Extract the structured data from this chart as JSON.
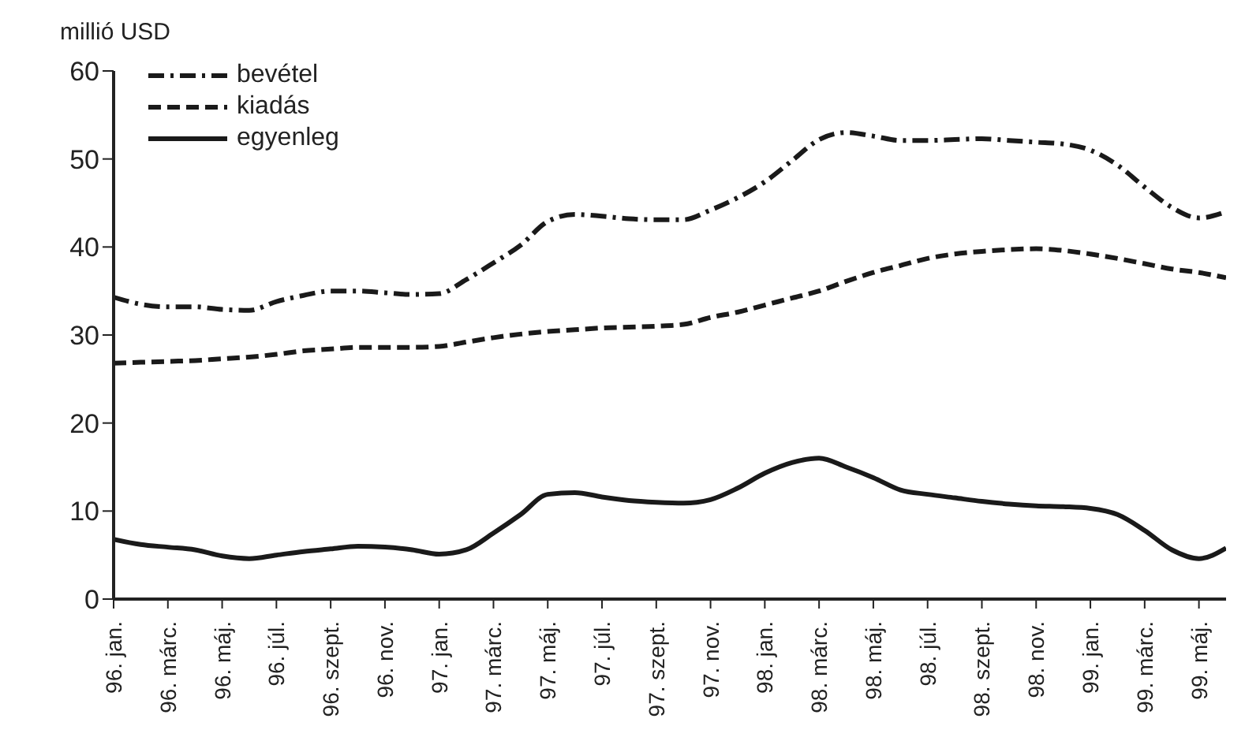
{
  "chart_data": {
    "type": "line",
    "ylabel": "millió USD",
    "categories": [
      "96. jan.",
      null,
      "96. márc.",
      null,
      "96. máj.",
      null,
      "96. júl.",
      null,
      "96. szept.",
      null,
      "96. nov.",
      null,
      "97. jan.",
      null,
      "97. márc.",
      null,
      "97. máj.",
      null,
      "97. júl.",
      null,
      "97. szept.",
      null,
      "97. nov.",
      null,
      "98. jan.",
      null,
      "98. márc.",
      null,
      "98. máj.",
      null,
      "98. júl.",
      null,
      "98. szept.",
      null,
      "98. nov.",
      null,
      "99. jan.",
      null,
      "99. márc.",
      null,
      "99. máj.",
      null
    ],
    "series": [
      {
        "name": "bevétel",
        "color": "#1a1a1a",
        "line_style": "dashdot",
        "values": [
          34.3,
          33.5,
          33.2,
          33.2,
          32.9,
          32.8,
          33.8,
          34.5,
          35.0,
          35.0,
          34.8,
          34.6,
          34.7,
          36.3,
          38.2,
          40.2,
          42.9,
          43.7,
          43.5,
          43.2,
          43.1,
          43.1,
          44.2,
          45.6,
          47.4,
          49.8,
          52.2,
          53.0,
          52.6,
          52.1,
          52.1,
          52.2,
          52.3,
          52.1,
          51.9,
          51.7,
          51.0,
          49.3,
          46.8,
          44.5,
          43.3,
          44.0
        ]
      },
      {
        "name": "kiadás",
        "color": "#1a1a1a",
        "line_style": "dashed",
        "values": [
          26.8,
          26.9,
          27.0,
          27.1,
          27.3,
          27.5,
          27.8,
          28.2,
          28.4,
          28.6,
          28.6,
          28.6,
          28.7,
          29.2,
          29.7,
          30.1,
          30.4,
          30.6,
          30.8,
          30.9,
          31.0,
          31.2,
          32.0,
          32.6,
          33.4,
          34.2,
          35.0,
          36.1,
          37.1,
          37.9,
          38.7,
          39.2,
          39.5,
          39.7,
          39.8,
          39.6,
          39.2,
          38.7,
          38.1,
          37.5,
          37.1,
          36.5
        ]
      },
      {
        "name": "egyenleg",
        "color": "#1a1a1a",
        "line_style": "solid",
        "values": [
          6.8,
          6.2,
          5.9,
          5.6,
          4.9,
          4.6,
          5.0,
          5.4,
          5.7,
          6.0,
          5.9,
          5.6,
          5.1,
          5.6,
          7.5,
          9.6,
          11.9,
          12.1,
          11.6,
          11.2,
          11.0,
          10.9,
          11.3,
          12.6,
          14.3,
          15.5,
          16.0,
          15.0,
          13.8,
          12.4,
          11.9,
          11.5,
          11.1,
          10.8,
          10.6,
          10.5,
          10.3,
          9.6,
          7.8,
          5.6,
          4.6,
          5.8
        ]
      }
    ],
    "ylim": [
      0,
      60
    ],
    "yticks": [
      0,
      10,
      20,
      30,
      40,
      50,
      60
    ],
    "grid": false,
    "legend": "top left",
    "marker": "none"
  }
}
